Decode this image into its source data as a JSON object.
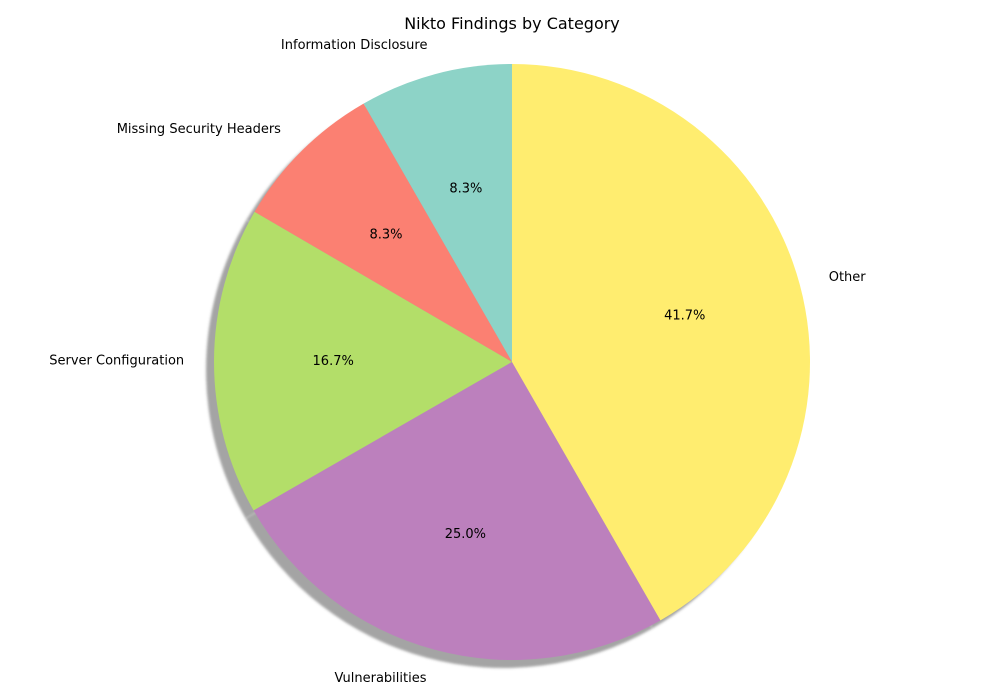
{
  "chart_data": {
    "type": "pie",
    "title": "Nikto Findings by Category",
    "start_angle_deg": 90,
    "direction": "counterclockwise",
    "shadow": true,
    "slices": [
      {
        "label": "Information Disclosure",
        "value": 8.3,
        "pct_label": "8.3%",
        "color": "#8dd3c7"
      },
      {
        "label": "Missing Security Headers",
        "value": 8.3,
        "pct_label": "8.3%",
        "color": "#fb8072"
      },
      {
        "label": "Server Configuration",
        "value": 16.7,
        "pct_label": "16.7%",
        "color": "#b3de69"
      },
      {
        "label": "Vulnerabilities",
        "value": 25.0,
        "pct_label": "25.0%",
        "color": "#bc80bd"
      },
      {
        "label": "Other",
        "value": 41.7,
        "pct_label": "41.7%",
        "color": "#ffed6f"
      }
    ]
  }
}
